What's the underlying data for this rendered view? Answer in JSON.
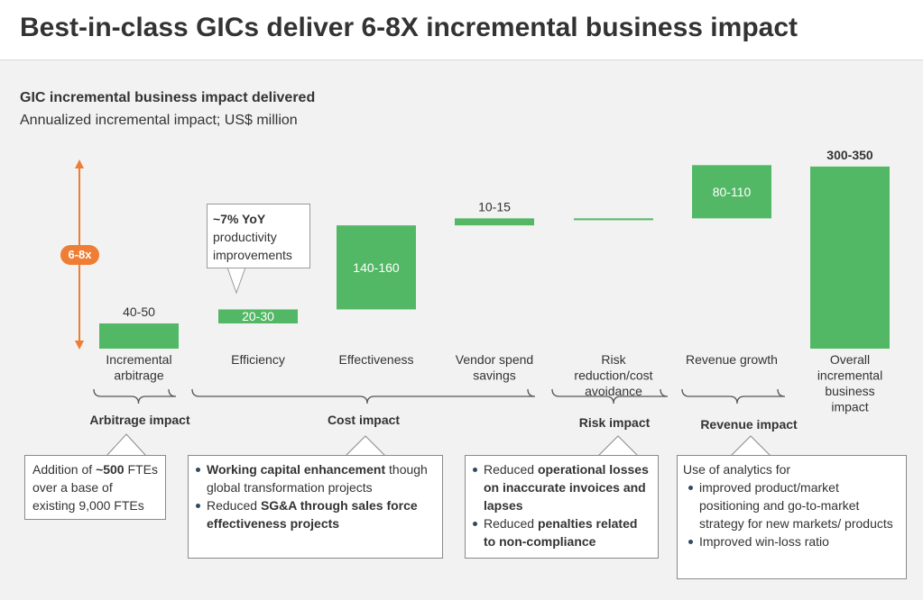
{
  "title": "Best-in-class GICs deliver 6-8X incremental business impact",
  "chart_title": "GIC incremental business impact delivered",
  "chart_subtitle": "Annualized incremental impact; US$ million",
  "multiplier_badge": "6-8x",
  "chart_data": {
    "type": "bar",
    "subtype": "waterfall",
    "categories": [
      "Incremental arbitrage",
      "Efficiency",
      "Effectiveness",
      "Vendor spend savings",
      "Risk reduction/cost avoidance",
      "Revenue growth",
      "Overall incremental business impact"
    ],
    "values": [
      45,
      25,
      150,
      12.5,
      0,
      95,
      325
    ],
    "value_labels": [
      "40-50",
      "20-30",
      "140-160",
      "10-15",
      "",
      "80-110",
      "300-350"
    ],
    "colors": {
      "bar": "#53b865",
      "arrow": "#ef7d34"
    }
  },
  "efficiency_callout": {
    "bold": "~7% YoY",
    "rest": "productivity improvements"
  },
  "groups": [
    {
      "label": "Arbitrage impact"
    },
    {
      "label": "Cost impact"
    },
    {
      "label": "Risk impact"
    },
    {
      "label": "Revenue impact"
    }
  ],
  "notes": {
    "arbitrage": {
      "pre": "Addition of ",
      "bold": "~500",
      "post": " FTEs over a base of existing 9,000 FTEs"
    },
    "cost": [
      {
        "bold": "Working capital enhancement",
        "rest": " though global transformation projects"
      },
      {
        "pre": "Reduced ",
        "bold": "SG&A through sales force effectiveness projects"
      }
    ],
    "risk": [
      {
        "pre": "Reduced ",
        "bold": "operational losses on inaccurate invoices and lapses"
      },
      {
        "pre": "Reduced ",
        "bold": "penalties related to non-compliance"
      }
    ],
    "revenue": {
      "intro": "Use of analytics for",
      "items": [
        "improved product/market positioning and go-to-market strategy for new markets/ products",
        "Improved win-loss ratio"
      ]
    }
  }
}
